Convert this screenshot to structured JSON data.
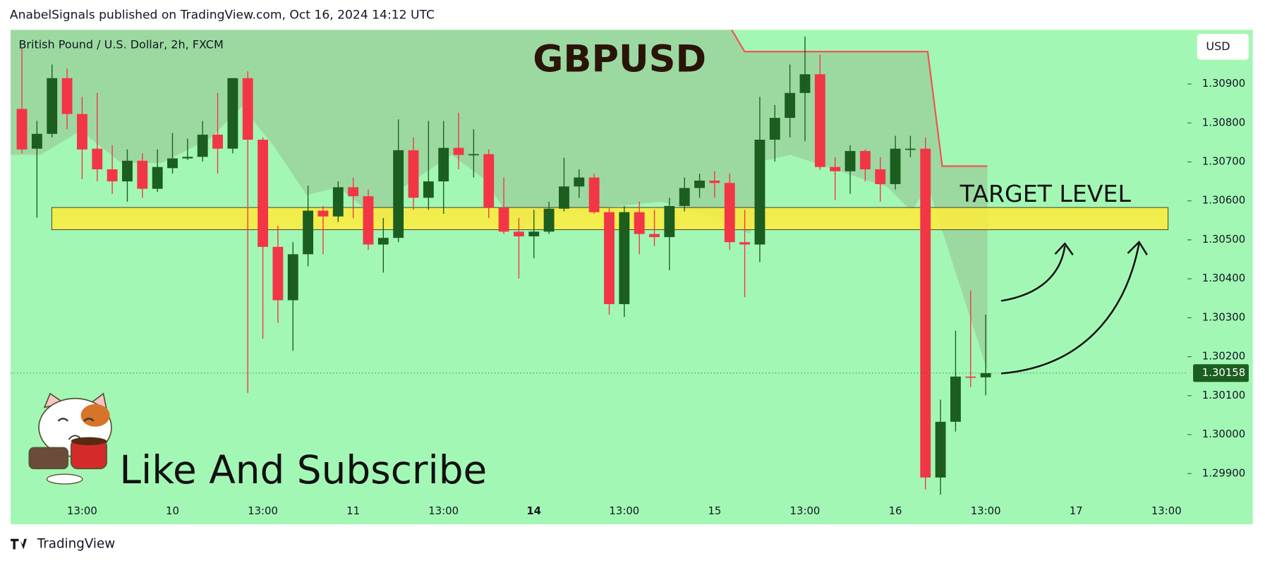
{
  "header": "AnabelSignals published on TradingView.com, Oct 16, 2024 14:12 UTC",
  "footer_brand": "TradingView",
  "chart_data": {
    "type": "candlestick",
    "title": "GBPUSD",
    "subtitle": "British Pound / U.S. Dollar, 2h, FXCM",
    "currency": "USD",
    "annotations": [
      "TARGET LEVEL",
      "Like And Subscribe"
    ],
    "target_zone": [
      1.30526,
      1.30583
    ],
    "colors": {
      "up": "#1b5e20",
      "down": "#f23645",
      "zone": "#ffeb3b",
      "background": "#a3f7b5"
    },
    "categories": [
      null,
      null,
      null,
      null,
      "13:00",
      null,
      null,
      null,
      null,
      null,
      "10",
      null,
      null,
      null,
      null,
      null,
      "13:00",
      null,
      null,
      null,
      null,
      null,
      "11",
      null,
      null,
      null,
      null,
      null,
      "13:00",
      null,
      null,
      null,
      null,
      null,
      "14",
      null,
      null,
      null,
      null,
      null,
      "13:00",
      null,
      null,
      null,
      null,
      null,
      "15",
      null,
      null,
      null,
      null,
      null,
      "13:00",
      null,
      null,
      null,
      null,
      null,
      "16",
      null,
      null,
      null,
      null,
      null,
      "13:00",
      null,
      null,
      null,
      null,
      null,
      "17",
      null,
      null,
      null,
      null,
      null,
      "13:00"
    ],
    "open": [
      1.30836,
      1.30734,
      1.30772,
      1.30915,
      1.30823,
      1.30734,
      1.30681,
      1.3065,
      1.30703,
      1.30631,
      1.30684,
      1.30709,
      1.30713,
      1.3077,
      1.30734,
      1.30915,
      1.30757,
      1.30482,
      1.30345,
      1.30463,
      1.30575,
      1.3056,
      1.30635,
      1.30612,
      1.30488,
      1.30505,
      1.3073,
      1.30608,
      1.3065,
      1.30736,
      1.30718,
      1.3072,
      1.30583,
      1.30521,
      1.30509,
      1.30521,
      1.3058,
      1.30637,
      1.3066,
      1.30571,
      1.30335,
      1.30571,
      1.30515,
      1.30507,
      1.30587,
      1.30633,
      1.30652,
      1.30646,
      1.30494,
      1.30488,
      1.30757,
      1.30813,
      1.30877,
      1.30925,
      1.30687,
      1.30676,
      1.30728,
      1.30681,
      1.30643,
      1.30732,
      1.30734,
      1.2989,
      1.30033,
      1.30149,
      1.30147,
      null,
      null,
      null,
      null,
      null,
      null,
      null,
      null,
      null,
      null,
      null,
      null
    ],
    "high": [
      1.30991,
      1.30805,
      1.3095,
      1.3094,
      1.30867,
      1.30877,
      1.30743,
      1.30732,
      1.30722,
      1.30732,
      1.30774,
      1.3076,
      1.30805,
      1.30877,
      1.30915,
      1.30933,
      1.30763,
      1.30536,
      1.30494,
      1.30639,
      1.30587,
      1.3065,
      1.3066,
      1.30629,
      1.30556,
      1.30809,
      1.30763,
      1.30805,
      1.30805,
      1.30826,
      1.30784,
      1.30732,
      1.3066,
      1.30556,
      1.30577,
      1.30598,
      1.30711,
      1.30681,
      1.3067,
      1.30581,
      1.30587,
      1.30598,
      1.30577,
      1.30608,
      1.3066,
      1.3067,
      1.30676,
      1.3067,
      1.30577,
      1.30867,
      1.30846,
      1.3095,
      1.31022,
      1.30975,
      1.30712,
      1.30743,
      1.30732,
      1.30712,
      1.30767,
      1.30767,
      1.30763,
      1.3009,
      1.30267,
      1.3037,
      1.30308,
      null,
      null,
      null,
      null,
      null,
      null,
      null,
      null,
      null,
      null,
      null,
      null
    ],
    "low": [
      1.30722,
      1.30557,
      1.30763,
      1.30784,
      1.30656,
      1.3065,
      1.30618,
      1.30598,
      1.30608,
      1.30623,
      1.3067,
      1.30705,
      1.30701,
      1.3067,
      1.30722,
      1.30107,
      1.30246,
      1.30287,
      1.30215,
      1.30432,
      1.30463,
      1.30546,
      1.30556,
      1.30474,
      1.30416,
      1.30494,
      1.30577,
      1.30577,
      1.30567,
      1.30681,
      1.3066,
      1.30556,
      1.30515,
      1.30401,
      1.30453,
      1.30515,
      1.30573,
      1.30608,
      1.30567,
      1.30308,
      1.30302,
      1.30463,
      1.30484,
      1.30422,
      1.30573,
      1.30608,
      1.30608,
      1.30474,
      1.30353,
      1.30443,
      1.30701,
      1.30763,
      1.30753,
      1.3068,
      1.30602,
      1.30618,
      1.3065,
      1.30598,
      1.30629,
      1.30712,
      1.29859,
      1.29846,
      1.30008,
      1.30122,
      1.30101,
      null,
      null,
      null,
      null,
      null,
      null,
      null,
      null,
      null,
      null,
      null,
      null
    ],
    "close": [
      1.30732,
      1.30772,
      1.30915,
      1.30823,
      1.30732,
      1.30681,
      1.3065,
      1.30703,
      1.30631,
      1.30687,
      1.30709,
      1.30713,
      1.3077,
      1.30734,
      1.30915,
      1.30757,
      1.30482,
      1.30345,
      1.30463,
      1.30575,
      1.3056,
      1.30635,
      1.30612,
      1.30488,
      1.30505,
      1.3073,
      1.30608,
      1.3065,
      1.30736,
      1.30718,
      1.3072,
      1.30583,
      1.30521,
      1.30509,
      1.30521,
      1.3058,
      1.30637,
      1.3066,
      1.30571,
      1.30335,
      1.30571,
      1.30515,
      1.30507,
      1.30587,
      1.30633,
      1.30652,
      1.30646,
      1.30494,
      1.30488,
      1.30757,
      1.30813,
      1.30877,
      1.30925,
      1.30687,
      1.30676,
      1.30728,
      1.30681,
      1.30643,
      1.30734,
      1.30734,
      1.2989,
      1.30033,
      1.30149,
      1.30147,
      1.30158,
      null,
      null,
      null,
      null,
      null,
      null,
      null,
      null,
      null,
      null,
      null,
      null
    ],
    "ylim": [
      1.29832,
      1.31039
    ],
    "yticks": [
      {
        "value": 1.299,
        "label": "1.29900"
      },
      {
        "value": 1.3,
        "label": "1.30000"
      },
      {
        "value": 1.301,
        "label": "1.30100"
      },
      {
        "value": 1.302,
        "label": "1.30200"
      },
      {
        "value": 1.303,
        "label": "1.30300"
      },
      {
        "value": 1.304,
        "label": "1.30400"
      },
      {
        "value": 1.305,
        "label": "1.30500"
      },
      {
        "value": 1.306,
        "label": "1.30600"
      },
      {
        "value": 1.307,
        "label": "1.30700"
      },
      {
        "value": 1.308,
        "label": "1.30800"
      },
      {
        "value": 1.309,
        "label": "1.30900"
      }
    ]
  }
}
